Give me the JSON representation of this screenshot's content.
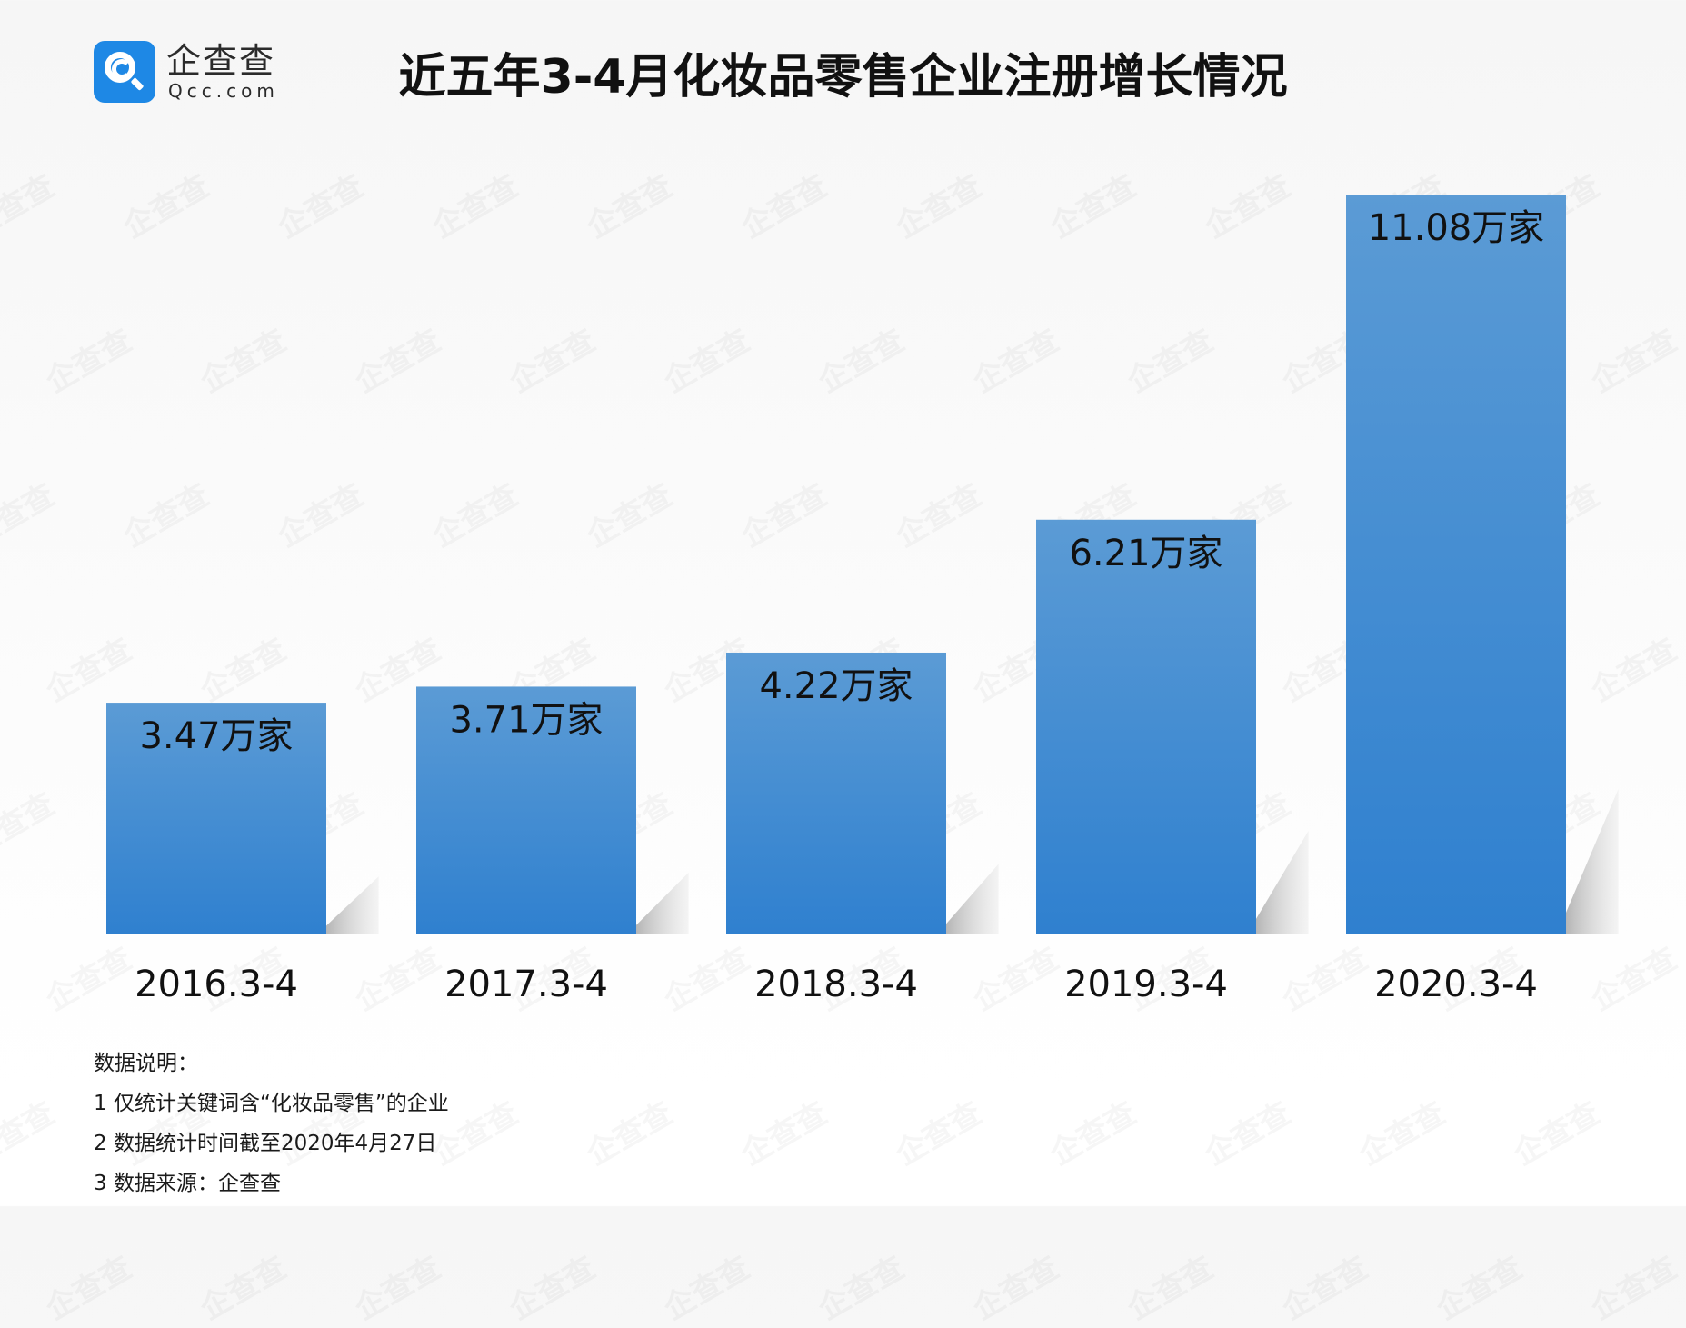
{
  "brand": {
    "name_cn": "企查查",
    "name_en": "Qcc.com",
    "watermark": "企查查"
  },
  "colors": {
    "bar_top": "#5b9bd5",
    "bar_bottom": "#2f80cf",
    "text": "#1a1a1a"
  },
  "chart_data": {
    "type": "bar",
    "title": "近五年3-4月化妆品零售企业注册增长情况",
    "categories": [
      "2016.3-4",
      "2017.3-4",
      "2018.3-4",
      "2019.3-4",
      "2020.3-4"
    ],
    "values": [
      3.47,
      3.71,
      4.22,
      6.21,
      11.08
    ],
    "value_labels": [
      "3.47万家",
      "3.71万家",
      "4.22万家",
      "6.21万家",
      "11.08万家"
    ],
    "xlabel": "",
    "ylabel": "",
    "ylim": [
      0,
      11.08
    ],
    "grid": false,
    "legend": "none"
  },
  "notes": {
    "heading": "数据说明：",
    "lines": [
      "1 仅统计关键词含“化妆品零售”的企业",
      "2 数据统计时间截至2020年4月27日",
      "3 数据来源：企查查"
    ]
  }
}
